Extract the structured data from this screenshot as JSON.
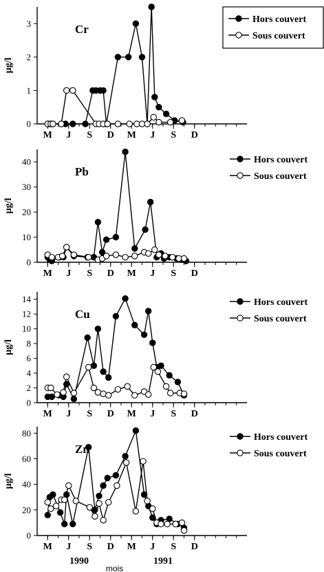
{
  "chart_data": [
    {
      "type": "line",
      "panel_label": "Cr",
      "ylabel": "µg/l",
      "xlim": [
        0,
        20
      ],
      "ylim": [
        0,
        3.5
      ],
      "yticks": [
        0,
        1,
        2,
        3
      ],
      "xtick_labels": [
        {
          "x": 1,
          "label": "M"
        },
        {
          "x": 3,
          "label": "J"
        },
        {
          "x": 5,
          "label": "S"
        },
        {
          "x": 7,
          "label": "D"
        },
        {
          "x": 9,
          "label": "M"
        },
        {
          "x": 11,
          "label": "J"
        },
        {
          "x": 13,
          "label": "S"
        },
        {
          "x": 15,
          "label": "D"
        }
      ],
      "legend_position": "top-right",
      "series": [
        {
          "name": "Hors couvert",
          "marker": "filled",
          "x": [
            1.0,
            1.2,
            1.5,
            2.3,
            2.7,
            3.4,
            4.6,
            5.3,
            5.6,
            6.0,
            6.3,
            6.6,
            7.7,
            8.7,
            9.4,
            10.0,
            10.5,
            10.9,
            11.2,
            11.6,
            12.3,
            13.1,
            13.9
          ],
          "y": [
            0,
            0,
            0,
            0,
            0,
            0,
            0,
            1,
            1,
            1,
            1,
            0,
            2,
            2,
            3,
            2,
            0,
            3.5,
            0.8,
            0.5,
            0.3,
            0.1,
            0.05
          ]
        },
        {
          "name": "Sous couvert",
          "marker": "open",
          "x": [
            1.0,
            1.3,
            1.5,
            2.3,
            2.8,
            3.4,
            5.6,
            5.9,
            6.3,
            6.7,
            7.7,
            8.8,
            9.5,
            10.0,
            10.5,
            11.1,
            11.6,
            12.7,
            13.8
          ],
          "y": [
            0,
            0,
            0,
            0,
            1,
            1,
            0,
            0,
            0,
            0,
            0,
            0,
            0,
            0,
            0,
            0.2,
            0.05,
            0.05,
            0.1
          ]
        }
      ]
    },
    {
      "type": "line",
      "panel_label": "Pb",
      "ylabel": "µg/l",
      "xlim": [
        0,
        20
      ],
      "ylim": [
        0,
        45
      ],
      "yticks": [
        0,
        10,
        20,
        30,
        40
      ],
      "xtick_labels": [
        {
          "x": 1,
          "label": "M"
        },
        {
          "x": 3,
          "label": "J"
        },
        {
          "x": 5,
          "label": "S"
        },
        {
          "x": 7,
          "label": "D"
        },
        {
          "x": 9,
          "label": "M"
        },
        {
          "x": 11,
          "label": "J"
        },
        {
          "x": 13,
          "label": "S"
        },
        {
          "x": 15,
          "label": "D"
        }
      ],
      "legend_position": "top-right",
      "series": [
        {
          "name": "Hors couvert",
          "marker": "filled",
          "x": [
            1.0,
            1.2,
            1.4,
            2.1,
            2.5,
            2.8,
            3.5,
            4.8,
            5.4,
            5.8,
            6.2,
            6.6,
            7.5,
            8.4,
            9.3,
            10.3,
            10.8,
            11.4,
            11.8,
            12.1,
            12.6,
            13.3,
            13.9,
            14.2
          ],
          "y": [
            2,
            1,
            0.5,
            2,
            2,
            6,
            2.5,
            2,
            2,
            16,
            4,
            9,
            10,
            44,
            5.5,
            13,
            24,
            2,
            3.5,
            1.5,
            2,
            1.5,
            1,
            0.5
          ]
        },
        {
          "name": "Sous couvert",
          "marker": "open",
          "x": [
            1.0,
            1.4,
            2.0,
            2.4,
            2.8,
            3.5,
            4.9,
            5.8,
            6.2,
            6.6,
            7.5,
            8.4,
            9.3,
            10.2,
            10.6,
            11.2,
            11.6,
            12.2,
            12.9,
            13.5,
            14.0
          ],
          "y": [
            3,
            2,
            2,
            2.5,
            6,
            3,
            2,
            1,
            1.5,
            2.5,
            3,
            2,
            2.5,
            4,
            3.5,
            5,
            3,
            2.5,
            2,
            1.5,
            1.5
          ]
        }
      ]
    },
    {
      "type": "line",
      "panel_label": "Cu",
      "ylabel": "µg/l",
      "xlim": [
        0,
        20
      ],
      "ylim": [
        0,
        15
      ],
      "yticks": [
        0,
        2,
        4,
        6,
        8,
        10,
        12,
        14
      ],
      "xtick_labels": [
        {
          "x": 1,
          "label": "M"
        },
        {
          "x": 3,
          "label": "J"
        },
        {
          "x": 5,
          "label": "S"
        },
        {
          "x": 7,
          "label": "D"
        },
        {
          "x": 9,
          "label": "M"
        },
        {
          "x": 11,
          "label": "J"
        },
        {
          "x": 13,
          "label": "S"
        },
        {
          "x": 15,
          "label": "D"
        }
      ],
      "legend_position": "top-right",
      "series": [
        {
          "name": "Hors couvert",
          "marker": "filled",
          "x": [
            1.0,
            1.4,
            2.1,
            2.5,
            2.8,
            3.5,
            4.8,
            5.4,
            5.8,
            6.3,
            6.8,
            7.5,
            8.4,
            9.3,
            10.2,
            10.6,
            11.0,
            11.4,
            11.8,
            12.6,
            13.4,
            14.0
          ],
          "y": [
            0.8,
            0.8,
            1.0,
            0.8,
            2.5,
            0.5,
            8.8,
            5.0,
            10.0,
            4.2,
            3.4,
            11.7,
            14.1,
            10.5,
            9.2,
            12.4,
            8.1,
            4.8,
            5.0,
            3.7,
            2.8,
            1.0
          ]
        },
        {
          "name": "Sous couvert",
          "marker": "open",
          "x": [
            1.0,
            1.3,
            1.9,
            2.5,
            2.8,
            3.5,
            4.9,
            5.4,
            5.8,
            6.3,
            6.8,
            7.7,
            8.6,
            9.3,
            10.2,
            10.6,
            11.1,
            11.5,
            12.3,
            12.7,
            13.6,
            14.0
          ],
          "y": [
            2.0,
            2.0,
            1.1,
            1.4,
            3.5,
            1.3,
            4.8,
            2.0,
            1.4,
            1.2,
            1.0,
            1.8,
            2.2,
            1.0,
            1.5,
            1.1,
            4.8,
            4.2,
            2.2,
            1.3,
            1.3,
            1.2
          ]
        }
      ]
    },
    {
      "type": "line",
      "panel_label": "Zn",
      "ylabel": "µg/l",
      "xlabel": "mois",
      "xlim": [
        0,
        20
      ],
      "ylim": [
        0,
        85
      ],
      "yticks": [
        0,
        20,
        40,
        60,
        80
      ],
      "xtick_labels": [
        {
          "x": 1,
          "label": "M"
        },
        {
          "x": 3,
          "label": "J"
        },
        {
          "x": 5,
          "label": "S"
        },
        {
          "x": 7,
          "label": "D"
        },
        {
          "x": 9,
          "label": "M"
        },
        {
          "x": 11,
          "label": "J"
        },
        {
          "x": 13,
          "label": "S"
        },
        {
          "x": 15,
          "label": "D"
        }
      ],
      "year_labels": [
        {
          "x": 4,
          "label": "1990"
        },
        {
          "x": 12,
          "label": "1991"
        }
      ],
      "legend_position": "top-right",
      "series": [
        {
          "name": "Hors couvert",
          "marker": "filled",
          "x": [
            1.0,
            1.2,
            1.5,
            2.2,
            2.6,
            2.8,
            3.4,
            4.9,
            5.5,
            5.9,
            6.3,
            6.7,
            7.5,
            8.4,
            9.4,
            10.2,
            10.6,
            11.0,
            11.4,
            11.8,
            12.6,
            13.4,
            14.0
          ],
          "y": [
            16,
            30,
            32,
            18,
            9,
            32,
            9,
            69,
            20,
            31,
            39,
            45,
            47,
            62,
            82,
            32,
            23,
            14,
            9,
            12,
            13,
            9,
            6
          ]
        },
        {
          "name": "Sous couvert",
          "marker": "open",
          "x": [
            1.0,
            1.3,
            1.8,
            2.3,
            2.6,
            3.0,
            3.7,
            5.0,
            5.5,
            5.9,
            6.3,
            6.8,
            7.6,
            8.5,
            9.4,
            10.1,
            10.5,
            11.0,
            11.4,
            11.8,
            12.4,
            13.2,
            13.8,
            14.0
          ],
          "y": [
            26,
            21,
            23,
            28,
            28,
            39,
            27,
            22,
            15,
            25,
            12,
            26,
            39,
            57,
            19,
            58,
            27,
            21,
            10,
            9,
            9,
            9,
            10,
            4
          ]
        }
      ]
    }
  ]
}
